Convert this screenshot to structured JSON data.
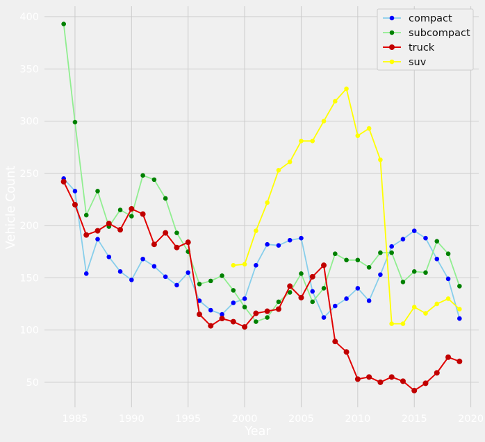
{
  "chart_data": {
    "type": "line",
    "title": "",
    "xlabel": "Year",
    "ylabel": "Vehicle Count",
    "xlim": [
      1982.3,
      2020.7
    ],
    "ylim": [
      26,
      410
    ],
    "xticks": [
      1985,
      1990,
      1995,
      2000,
      2005,
      2010,
      2015,
      2020
    ],
    "yticks": [
      50,
      100,
      150,
      200,
      250,
      300,
      350,
      400
    ],
    "grid": true,
    "legend_position": "top-right",
    "series": [
      {
        "name": "compact",
        "line_color": "#87ceeb",
        "marker_color": "#0000ff",
        "x": [
          1984,
          1985,
          1986,
          1987,
          1988,
          1989,
          1990,
          1991,
          1992,
          1993,
          1994,
          1995,
          1996,
          1997,
          1998,
          1999,
          2000,
          2001,
          2002,
          2003,
          2004,
          2005,
          2006,
          2007,
          2008,
          2009,
          2010,
          2011,
          2012,
          2013,
          2014,
          2015,
          2016,
          2017,
          2018,
          2019
        ],
        "y": [
          245,
          233,
          154,
          187,
          170,
          156,
          148,
          168,
          161,
          151,
          143,
          155,
          128,
          119,
          115,
          126,
          130,
          162,
          182,
          181,
          186,
          188,
          137,
          112,
          123,
          130,
          140,
          128,
          153,
          180,
          187,
          195,
          188,
          168,
          149,
          111
        ]
      },
      {
        "name": "subcompact",
        "line_color": "#90ee90",
        "marker_color": "#008000",
        "x": [
          1984,
          1985,
          1986,
          1987,
          1988,
          1989,
          1990,
          1991,
          1992,
          1993,
          1994,
          1995,
          1996,
          1997,
          1998,
          1999,
          2000,
          2001,
          2002,
          2003,
          2004,
          2005,
          2006,
          2007,
          2008,
          2009,
          2010,
          2011,
          2012,
          2013,
          2014,
          2015,
          2016,
          2017,
          2018,
          2019
        ],
        "y": [
          393,
          299,
          210,
          233,
          199,
          215,
          209,
          248,
          244,
          226,
          193,
          175,
          144,
          147,
          152,
          138,
          122,
          108,
          112,
          127,
          136,
          154,
          127,
          140,
          173,
          167,
          167,
          160,
          174,
          174,
          146,
          156,
          155,
          185,
          173,
          142
        ]
      },
      {
        "name": "truck",
        "line_color": "#e00000",
        "marker_color": "#c00000",
        "x": [
          1984,
          1985,
          1986,
          1987,
          1988,
          1989,
          1990,
          1991,
          1992,
          1993,
          1994,
          1995,
          1996,
          1997,
          1998,
          1999,
          2000,
          2001,
          2002,
          2003,
          2004,
          2005,
          2006,
          2007,
          2008,
          2009,
          2010,
          2011,
          2012,
          2013,
          2014,
          2015,
          2016,
          2017,
          2018,
          2019
        ],
        "y": [
          242,
          220,
          191,
          195,
          202,
          196,
          216,
          211,
          182,
          193,
          179,
          184,
          115,
          104,
          111,
          108,
          103,
          116,
          118,
          120,
          142,
          131,
          151,
          162,
          89,
          79,
          53,
          55,
          50,
          55,
          51,
          42,
          49,
          59,
          74,
          70
        ]
      },
      {
        "name": "suv",
        "line_color": "#ffff00",
        "marker_color": "#ffff00",
        "x": [
          1999,
          2000,
          2001,
          2002,
          2003,
          2004,
          2005,
          2006,
          2007,
          2008,
          2009,
          2010,
          2011,
          2012,
          2013,
          2014,
          2015,
          2016,
          2017,
          2018,
          2019
        ],
        "y": [
          162,
          163,
          195,
          222,
          253,
          261,
          281,
          281,
          300,
          319,
          331,
          286,
          293,
          263,
          106,
          106,
          122,
          116,
          125,
          130,
          120
        ]
      }
    ]
  }
}
